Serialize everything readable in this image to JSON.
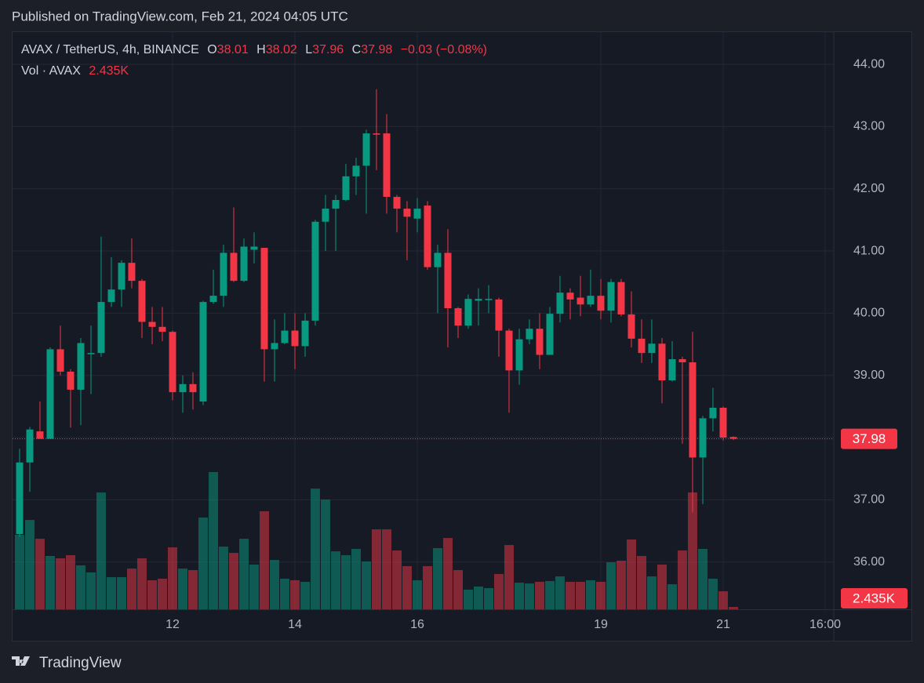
{
  "header": "Published on TradingView.com, Feb 21, 2024 04:05 UTC",
  "footer_brand": "TradingView",
  "chart_data": {
    "type": "candlestick",
    "symbol": "AVAX / TetherUS, 4h, BINANCE",
    "ohlc_prefixes": [
      "O",
      "H",
      "L",
      "C"
    ],
    "change_label": "−0.03 (−0.08%)",
    "volume_title": "Vol · AVAX",
    "volume_last_label": "2.435K",
    "up_color": "#089981",
    "down_color": "#f23645",
    "grid": true,
    "ylim": [
      35.24,
      44.53
    ],
    "yticks": [
      {
        "value": 36,
        "label": "36.00"
      },
      {
        "value": 37,
        "label": "37.00"
      },
      {
        "value": 38,
        "label": "38.00"
      },
      {
        "value": 39,
        "label": "39.00"
      },
      {
        "value": 40,
        "label": "40.00"
      },
      {
        "value": 41,
        "label": "41.00"
      },
      {
        "value": 42,
        "label": "42.00"
      },
      {
        "value": 43,
        "label": "43.00"
      },
      {
        "value": 44,
        "label": "44.00"
      }
    ],
    "xlim": [
      9.372,
      22.808
    ],
    "xticks": [
      12,
      14,
      16,
      19,
      21,
      {
        "value": 22.667,
        "label": "16:00"
      }
    ],
    "x": [
      9.5,
      9.667,
      9.833,
      10,
      10.167,
      10.333,
      10.5,
      10.667,
      10.833,
      11,
      11.167,
      11.333,
      11.5,
      11.667,
      11.833,
      12,
      12.167,
      12.333,
      12.5,
      12.667,
      12.833,
      13,
      13.167,
      13.333,
      13.5,
      13.667,
      13.833,
      14,
      14.167,
      14.333,
      14.5,
      14.667,
      14.833,
      15,
      15.167,
      15.333,
      15.5,
      15.667,
      15.833,
      16,
      16.167,
      16.333,
      16.5,
      16.667,
      16.833,
      17,
      17.167,
      17.333,
      17.5,
      17.667,
      17.833,
      18,
      18.167,
      18.333,
      18.5,
      18.667,
      18.833,
      19,
      19.167,
      19.333,
      19.5,
      19.667,
      19.833,
      20,
      20.167,
      20.333,
      20.5,
      20.667,
      20.833,
      21,
      21.167
    ],
    "open": [
      36.45,
      37.6,
      38.1,
      37.98,
      39.42,
      39.06,
      38.77,
      39.34,
      39.36,
      40.18,
      40.38,
      40.81,
      40.52,
      39.86,
      39.78,
      39.7,
      38.73,
      38.86,
      38.58,
      40.18,
      40.28,
      40.97,
      40.52,
      41.02,
      41.05,
      39.42,
      39.52,
      39.72,
      39.47,
      39.88,
      41.47,
      41.68,
      41.82,
      42.2,
      42.37,
      42.89,
      42.89,
      41.87,
      41.68,
      41.52,
      41.73,
      40.74,
      40.97,
      40.08,
      39.8,
      40.2,
      40.21,
      40.22,
      39.72,
      39.08,
      39.58,
      39.75,
      39.33,
      39.99,
      40.33,
      40.25,
      40.14,
      40.28,
      40.04,
      40.5,
      39.98,
      39.59,
      39.36,
      39.51,
      38.92,
      39.26,
      39.21,
      37.68,
      38.31,
      38.48,
      38.01
    ],
    "high": [
      37.82,
      38.17,
      38.58,
      39.45,
      39.8,
      39.1,
      39.6,
      39.8,
      41.23,
      40.9,
      40.85,
      41.2,
      40.55,
      40.1,
      40.1,
      39.72,
      39.0,
      39.05,
      40.2,
      40.7,
      41.1,
      41.7,
      41.2,
      41.3,
      41.05,
      39.9,
      40.0,
      40.0,
      40.0,
      41.5,
      41.9,
      41.9,
      42.4,
      42.5,
      42.95,
      43.6,
      43.2,
      41.9,
      41.8,
      41.85,
      41.8,
      41.1,
      41.35,
      40.1,
      40.3,
      40.4,
      40.45,
      40.25,
      39.75,
      39.75,
      39.9,
      40.0,
      40.1,
      40.6,
      40.4,
      40.6,
      40.7,
      40.55,
      40.55,
      40.55,
      40.35,
      39.9,
      39.9,
      39.6,
      39.55,
      39.3,
      39.7,
      38.35,
      38.8,
      38.5,
      38.02
    ],
    "low": [
      36.4,
      37.13,
      37.98,
      37.98,
      39.0,
      38.16,
      38.2,
      38.7,
      39.3,
      40.1,
      40.1,
      40.4,
      39.6,
      39.5,
      39.55,
      38.6,
      38.4,
      38.45,
      38.52,
      40.15,
      40.1,
      40.5,
      40.5,
      40.8,
      38.9,
      38.9,
      39.5,
      39.1,
      39.3,
      39.8,
      41.0,
      41.0,
      41.8,
      41.9,
      41.6,
      42.3,
      41.6,
      41.3,
      40.85,
      41.3,
      40.7,
      40.0,
      39.45,
      39.6,
      39.75,
      39.8,
      40.0,
      39.3,
      38.4,
      38.85,
      39.5,
      39.1,
      39.33,
      39.85,
      39.9,
      39.95,
      40.1,
      39.9,
      39.85,
      39.95,
      39.45,
      39.2,
      39.2,
      38.55,
      38.9,
      37.9,
      36.8,
      36.93,
      38.1,
      37.95,
      37.96
    ],
    "close": [
      37.6,
      38.13,
      37.98,
      39.42,
      39.06,
      38.77,
      39.52,
      39.36,
      40.18,
      40.38,
      40.81,
      40.52,
      39.86,
      39.78,
      39.7,
      38.73,
      38.86,
      38.73,
      40.18,
      40.28,
      40.97,
      40.52,
      41.07,
      41.07,
      39.42,
      39.52,
      39.72,
      39.47,
      39.88,
      41.47,
      41.68,
      41.82,
      42.2,
      42.37,
      42.89,
      42.87,
      41.87,
      41.68,
      41.55,
      41.68,
      40.74,
      40.97,
      40.08,
      39.8,
      40.23,
      40.23,
      40.23,
      39.72,
      39.08,
      39.58,
      39.75,
      39.33,
      39.99,
      40.33,
      40.22,
      40.14,
      40.28,
      40.04,
      40.5,
      39.98,
      39.59,
      39.36,
      39.51,
      38.92,
      39.26,
      39.21,
      37.68,
      38.31,
      38.48,
      38.0,
      37.98
    ],
    "volume": [
      77000,
      92300,
      72900,
      55100,
      52700,
      55900,
      45400,
      38100,
      120700,
      33200,
      33200,
      42100,
      52700,
      30000,
      31600,
      64000,
      42100,
      40500,
      94800,
      141800,
      64800,
      58300,
      72900,
      46200,
      101300,
      51000,
      31600,
      30000,
      28400,
      124700,
      113400,
      59900,
      55900,
      62400,
      49400,
      82600,
      82600,
      60800,
      44600,
      30000,
      44600,
      63200,
      73700,
      40500,
      20300,
      23500,
      21900,
      36500,
      66400,
      27500,
      26700,
      28400,
      29200,
      34000,
      28400,
      28400,
      30000,
      28400,
      48600,
      50200,
      72100,
      55100,
      34000,
      46200,
      25900,
      60800,
      120700,
      62400,
      31600,
      18600,
      2435
    ]
  }
}
